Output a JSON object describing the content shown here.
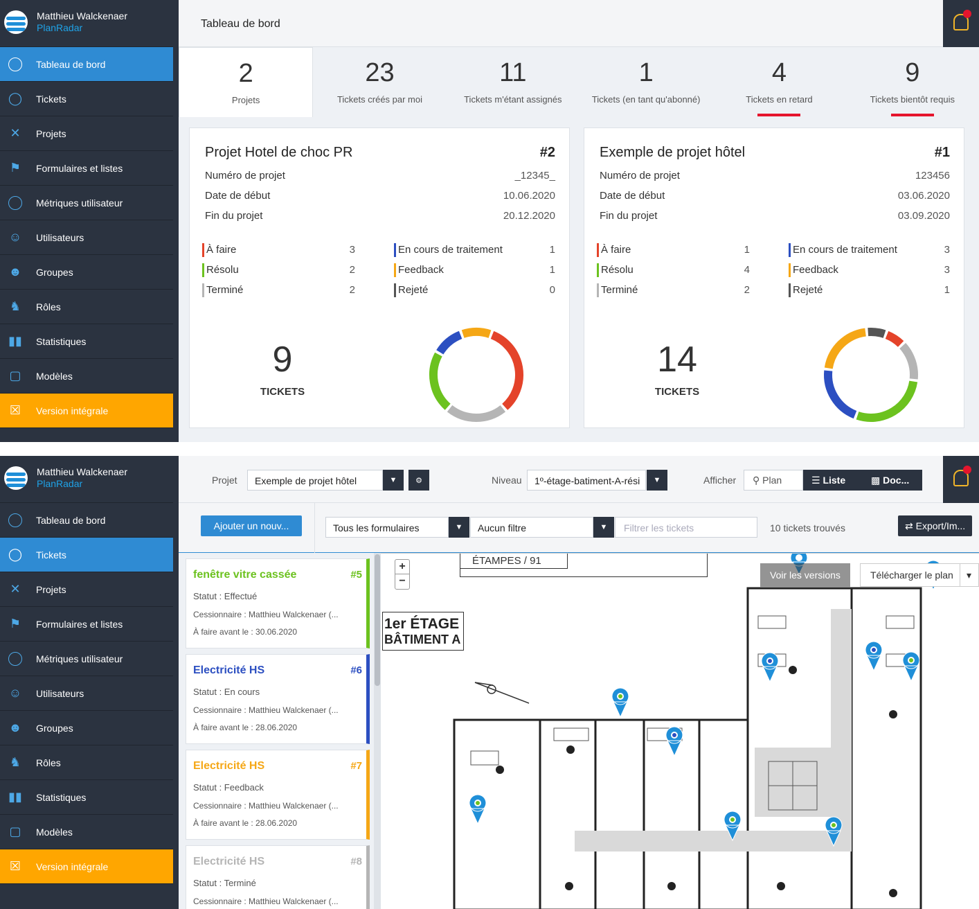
{
  "user": {
    "name": "Matthieu Walckenaer",
    "company": "PlanRadar"
  },
  "nav": [
    {
      "label": "Tableau de bord",
      "icon": "dashboard-gauge-icon"
    },
    {
      "label": "Tickets",
      "icon": "tag-icon"
    },
    {
      "label": "Projets",
      "icon": "tools-icon"
    },
    {
      "label": "Formulaires et listes",
      "icon": "flag-icon"
    },
    {
      "label": "Métriques utilisateur",
      "icon": "user-metrics-icon"
    },
    {
      "label": "Utilisateurs",
      "icon": "user-icon"
    },
    {
      "label": "Groupes",
      "icon": "group-icon"
    },
    {
      "label": "Rôles",
      "icon": "chess-role-icon"
    },
    {
      "label": "Statistiques",
      "icon": "bar-chart-icon"
    },
    {
      "label": "Modèles",
      "icon": "clipboard-icon"
    },
    {
      "label": "Version intégrale",
      "icon": "cart-icon"
    }
  ],
  "dashboard": {
    "title": "Tableau de bord",
    "stats": [
      {
        "value": "2",
        "label": "Projets"
      },
      {
        "value": "23",
        "label": "Tickets créés par moi"
      },
      {
        "value": "11",
        "label": "Tickets m'étant assignés"
      },
      {
        "value": "1",
        "label": "Tickets (en tant qu'abonné)"
      },
      {
        "value": "4",
        "label": "Tickets en retard"
      },
      {
        "value": "9",
        "label": "Tickets bientôt requis"
      }
    ],
    "projects": [
      {
        "title": "Projet Hotel de choc PR",
        "number": "#2",
        "fields": [
          {
            "label": "Numéro de projet",
            "value": "_12345_"
          },
          {
            "label": "Date de début",
            "value": "10.06.2020"
          },
          {
            "label": "Fin du projet",
            "value": "20.12.2020"
          }
        ],
        "statuses": [
          {
            "label": "À faire",
            "value": "3",
            "color": "#e4432a"
          },
          {
            "label": "En cours de traitement",
            "value": "1",
            "color": "#2c4fc1"
          },
          {
            "label": "Résolu",
            "value": "2",
            "color": "#6cc21f"
          },
          {
            "label": "Feedback",
            "value": "1",
            "color": "#f5a716"
          },
          {
            "label": "Terminé",
            "value": "2",
            "color": "#b5b5b5"
          },
          {
            "label": "Rejeté",
            "value": "0",
            "color": "#555555"
          }
        ],
        "tickets_total": "9",
        "tickets_label": "TICKETS"
      },
      {
        "title": "Exemple de projet hôtel",
        "number": "#1",
        "fields": [
          {
            "label": "Numéro de projet",
            "value": "123456"
          },
          {
            "label": "Date de début",
            "value": "03.06.2020"
          },
          {
            "label": "Fin du projet",
            "value": "03.09.2020"
          }
        ],
        "statuses": [
          {
            "label": "À faire",
            "value": "1",
            "color": "#e4432a"
          },
          {
            "label": "En cours de traitement",
            "value": "3",
            "color": "#2c4fc1"
          },
          {
            "label": "Résolu",
            "value": "4",
            "color": "#6cc21f"
          },
          {
            "label": "Feedback",
            "value": "3",
            "color": "#f5a716"
          },
          {
            "label": "Terminé",
            "value": "2",
            "color": "#b5b5b5"
          },
          {
            "label": "Rejeté",
            "value": "1",
            "color": "#555555"
          }
        ],
        "tickets_total": "14",
        "tickets_label": "TICKETS"
      }
    ]
  },
  "tickets_view": {
    "project_label": "Projet",
    "project_value": "Exemple de projet hôtel",
    "level_label": "Niveau",
    "level_value": "1º-étage-batiment-A-rési",
    "show_label": "Afficher",
    "view_plan": "Plan",
    "view_list": "Liste",
    "view_doc": "Doc...",
    "add_button": "Ajouter un nouv...",
    "form_filter": "Tous les formulaires",
    "filter": "Aucun filtre",
    "search_placeholder": "Filtrer les tickets",
    "found": "10 tickets trouvés",
    "export": "Export/Im...",
    "tickets": [
      {
        "title": "fenêtre vitre cassée",
        "num": "#5",
        "color": "#6cc21f",
        "status": "Statut : Effectué",
        "assignee": "Cessionnaire : Matthieu Walckenaer (...",
        "due": "À faire avant le : 30.06.2020"
      },
      {
        "title": "Electricité HS",
        "num": "#6",
        "color": "#2c4fc1",
        "status": "Statut : En cours",
        "assignee": "Cessionnaire : Matthieu Walckenaer (...",
        "due": "À faire avant le : 28.06.2020"
      },
      {
        "title": "Electricité HS",
        "num": "#7",
        "color": "#f5a716",
        "status": "Statut : Feedback",
        "assignee": "Cessionnaire : Matthieu Walckenaer (...",
        "due": "À faire avant le : 28.06.2020"
      },
      {
        "title": "Electricité HS",
        "num": "#8",
        "color": "#b5b5b5",
        "status": "Statut : Terminé",
        "assignee": "Cessionnaire : Matthieu Walckenaer (...",
        "due": ""
      }
    ],
    "map": {
      "city": "ÉTAMPES / 91",
      "floor_line1": "1er ÉTAGE",
      "floor_line2": "BÂTIMENT A",
      "versions_button": "Voir les versions",
      "download_button": "Télécharger le plan"
    }
  }
}
